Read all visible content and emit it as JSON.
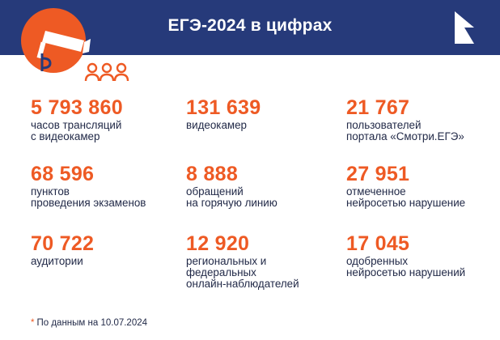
{
  "header": {
    "title": "ЕГЭ-2024 в цифрах"
  },
  "stats": [
    {
      "value": "5 793 860",
      "desc": "часов трансляций\nс видеокамер"
    },
    {
      "value": "131 639",
      "desc": "видеокамер"
    },
    {
      "value": "21 767",
      "desc": "пользователей\nпортала «Смотри.ЕГЭ»"
    },
    {
      "value": "68 596",
      "desc": "пунктов\nпроведения экзаменов"
    },
    {
      "value": "8 888",
      "desc": "обращений\nна горячую линию"
    },
    {
      "value": "27 951",
      "desc": "отмеченное\nнейросетью нарушение"
    },
    {
      "value": "70 722",
      "desc": "аудитории"
    },
    {
      "value": "12 920",
      "desc": "региональных и\nфедеральных\nонлайн-наблюдателей"
    },
    {
      "value": "17 045",
      "desc": "одобренных\nнейросетью нарушений"
    }
  ],
  "footnote": {
    "star": "*",
    "text": "По данным на 10.07.2024"
  },
  "colors": {
    "banner": "#263a7a",
    "accent": "#ee5a24",
    "text": "#222a48"
  },
  "icons": {
    "hero": "camera-and-people-icon",
    "logo": "rostelecom-logo-icon"
  }
}
